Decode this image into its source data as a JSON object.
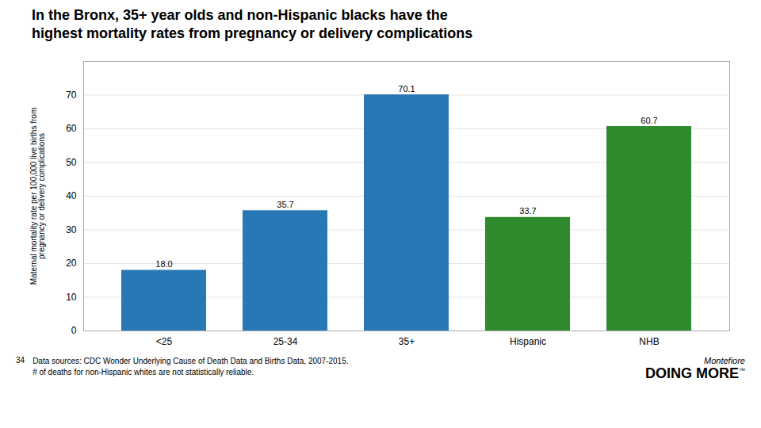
{
  "chart_data": {
    "type": "bar",
    "title": "In the Bronx, 35+ year olds and non-Hispanic blacks have the\nhighest mortality rates from pregnancy or delivery complications",
    "categories": [
      "<25",
      "25-34",
      "35+",
      "Hispanic",
      "NHB"
    ],
    "values": [
      18.0,
      35.7,
      70.1,
      33.7,
      60.7
    ],
    "value_labels": [
      "18.0",
      "35.7",
      "70.1",
      "33.7",
      "60.7"
    ],
    "colors": [
      "#2878b5",
      "#2878b5",
      "#2878b5",
      "#2e8b2e",
      "#2e8b2e"
    ],
    "ylabel": "Maternal mortality rate per 100,000 live births from\npregnancy or delivery complications",
    "ylim": [
      0,
      80
    ],
    "yticks": [
      0,
      10,
      20,
      30,
      40,
      50,
      60,
      70
    ],
    "grid": true,
    "data_labels": true,
    "annotations": [
      "34",
      "Data sources: CDC Wonder Underlying Cause of Death Data and Births Data, 2007-2015.",
      "# of deaths for non-Hispanic whites are not statistically reliable.",
      "Montefiore",
      "DOING MORE",
      "™"
    ]
  }
}
